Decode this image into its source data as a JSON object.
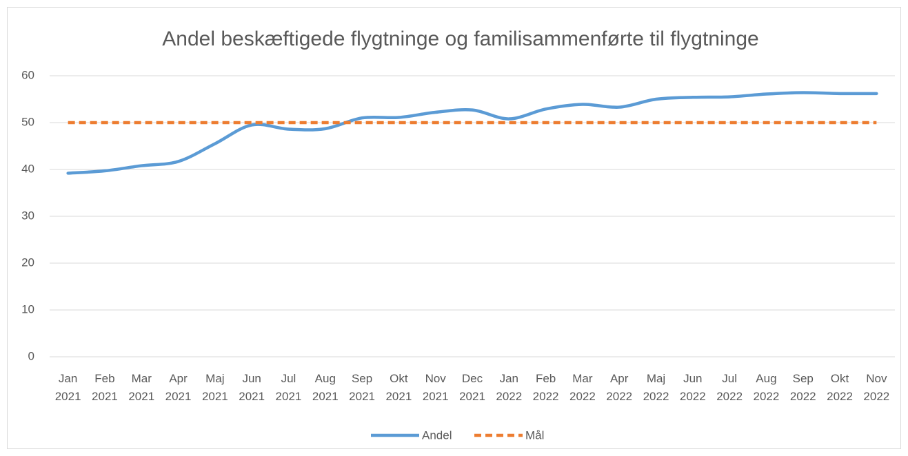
{
  "chart_data": {
    "type": "line",
    "title": "Andel beskæftigede flygtninge og familisammenførte til flygtninge",
    "categories": [
      "Jan 2021",
      "Feb 2021",
      "Mar 2021",
      "Apr 2021",
      "Maj 2021",
      "Jun 2021",
      "Jul 2021",
      "Aug 2021",
      "Sep 2021",
      "Okt 2021",
      "Nov 2021",
      "Dec 2021",
      "Jan 2022",
      "Feb 2022",
      "Mar 2022",
      "Apr 2022",
      "Maj 2022",
      "Jun 2022",
      "Jul 2022",
      "Aug 2022",
      "Sep 2022",
      "Okt 2022",
      "Nov 2022"
    ],
    "series": [
      {
        "name": "Andel",
        "color": "#5b9bd5",
        "dashed": false,
        "smooth": true,
        "values": [
          39.2,
          39.7,
          40.8,
          41.7,
          45.5,
          49.5,
          48.6,
          48.7,
          51.0,
          51.1,
          52.2,
          52.7,
          50.8,
          52.9,
          53.9,
          53.3,
          55.0,
          55.4,
          55.5,
          56.1,
          56.4,
          56.2,
          56.2
        ]
      },
      {
        "name": "Mål",
        "color": "#ed7d31",
        "dashed": true,
        "smooth": false,
        "values": [
          50,
          50,
          50,
          50,
          50,
          50,
          50,
          50,
          50,
          50,
          50,
          50,
          50,
          50,
          50,
          50,
          50,
          50,
          50,
          50,
          50,
          50,
          50
        ]
      }
    ],
    "ylim": [
      0,
      60
    ],
    "yticks": [
      0,
      10,
      20,
      30,
      40,
      50,
      60
    ],
    "grid": true,
    "legend": "bottom"
  }
}
